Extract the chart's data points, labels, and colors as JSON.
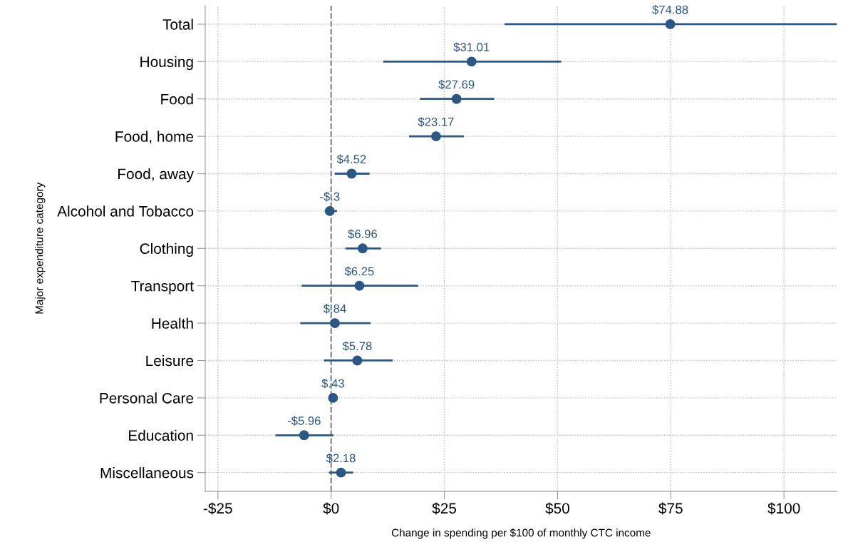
{
  "chart_data": {
    "type": "scatter",
    "orientation": "horizontal",
    "xlabel": "Change in spending per $100 of monthly CTC income",
    "ylabel": "Major expenditure category",
    "categories": [
      "Total",
      "Housing",
      "Food",
      "Food, home",
      "Food, away",
      "Alcohol and Tobacco",
      "Clothing",
      "Transport",
      "Health",
      "Leisure",
      "Personal Care",
      "Education",
      "Miscellaneous"
    ],
    "values": [
      74.88,
      31.01,
      27.69,
      23.17,
      4.52,
      -0.3,
      6.96,
      6.25,
      0.84,
      5.78,
      0.43,
      -5.96,
      2.18
    ],
    "errors": [
      [
        38.3,
        111.7
      ],
      [
        11.5,
        50.8
      ],
      [
        19.6,
        36.0
      ],
      [
        17.2,
        29.3
      ],
      [
        0.8,
        8.5
      ],
      [
        -1.4,
        1.3
      ],
      [
        3.2,
        11.0
      ],
      [
        -6.5,
        19.2
      ],
      [
        -6.8,
        8.7
      ],
      [
        -1.6,
        13.6
      ],
      [
        -0.2,
        0.9
      ],
      [
        -12.3,
        0.5
      ],
      [
        -0.5,
        4.9
      ]
    ],
    "value_labels": [
      "$74.88",
      "$31.01",
      "$27.69",
      "$23.17",
      "$4.52",
      "-$.3",
      "$6.96",
      "$6.25",
      "$.84",
      "$5.78",
      "$.43",
      "-$5.96",
      "$2.18"
    ],
    "color": "#2a5783",
    "marker": "circle",
    "xlim": [
      -27.8,
      111.7
    ],
    "xticks": [
      {
        "value": -25,
        "label": "-$25"
      },
      {
        "value": 0,
        "label": "$0"
      },
      {
        "value": 25,
        "label": "$25"
      },
      {
        "value": 50,
        "label": "$50"
      },
      {
        "value": 75,
        "label": "$75"
      },
      {
        "value": 100,
        "label": "$100"
      }
    ],
    "ref_lines": [
      {
        "axis": "x",
        "value": 0,
        "color": "#808080",
        "line_style": "dashed"
      }
    ],
    "grid": true,
    "legend": false
  }
}
